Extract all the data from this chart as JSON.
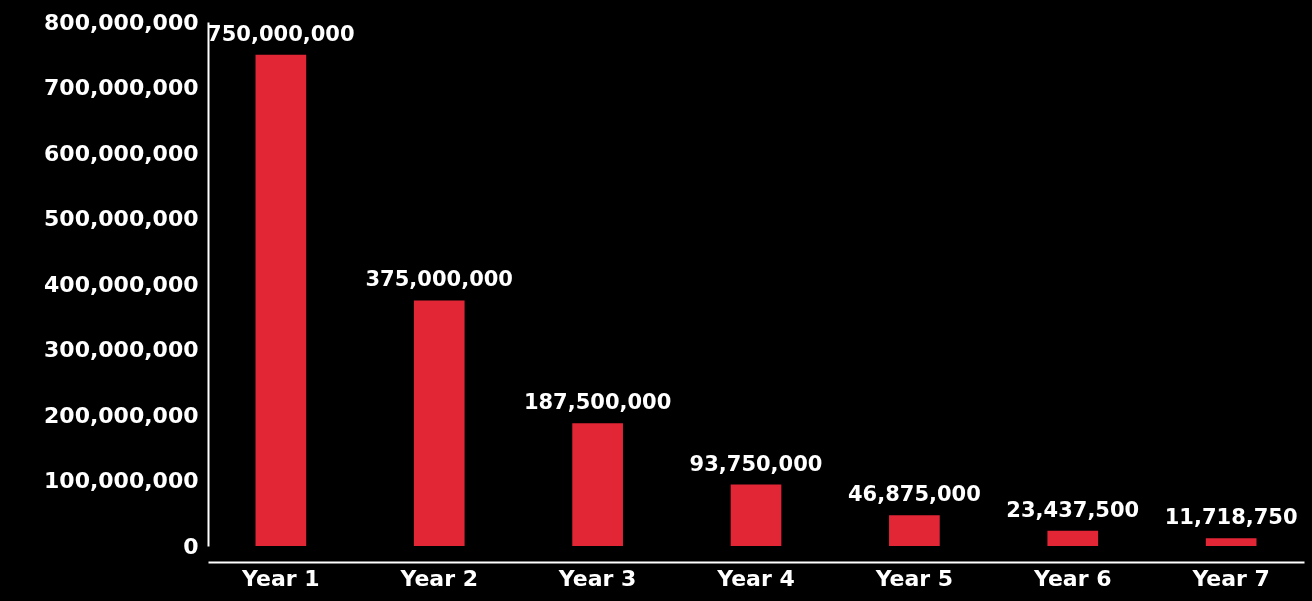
{
  "chart_data": {
    "type": "bar",
    "categories": [
      "Year 1",
      "Year 2",
      "Year 3",
      "Year 4",
      "Year 5",
      "Year 6",
      "Year 7"
    ],
    "values": [
      750000000,
      375000000,
      187500000,
      93750000,
      46875000,
      23437500,
      11718750
    ],
    "value_labels": [
      "750,000,000",
      "375,000,000",
      "187,500,000",
      "93,750,000",
      "46,875,000",
      "23,437,500",
      "11,718,750"
    ],
    "color": "#e32636",
    "ylim": [
      0,
      800000000
    ],
    "yticks": [
      {
        "value": 0,
        "label": "0"
      },
      {
        "value": 100000000,
        "label": "100,000,000"
      },
      {
        "value": 200000000,
        "label": "200,000,000"
      },
      {
        "value": 300000000,
        "label": "300,000,000"
      },
      {
        "value": 400000000,
        "label": "400,000,000"
      },
      {
        "value": 500000000,
        "label": "500,000,000"
      },
      {
        "value": 600000000,
        "label": "600,000,000"
      },
      {
        "value": 700000000,
        "label": "700,000,000"
      },
      {
        "value": 800000000,
        "label": "800,000,000"
      }
    ],
    "grid": false
  }
}
